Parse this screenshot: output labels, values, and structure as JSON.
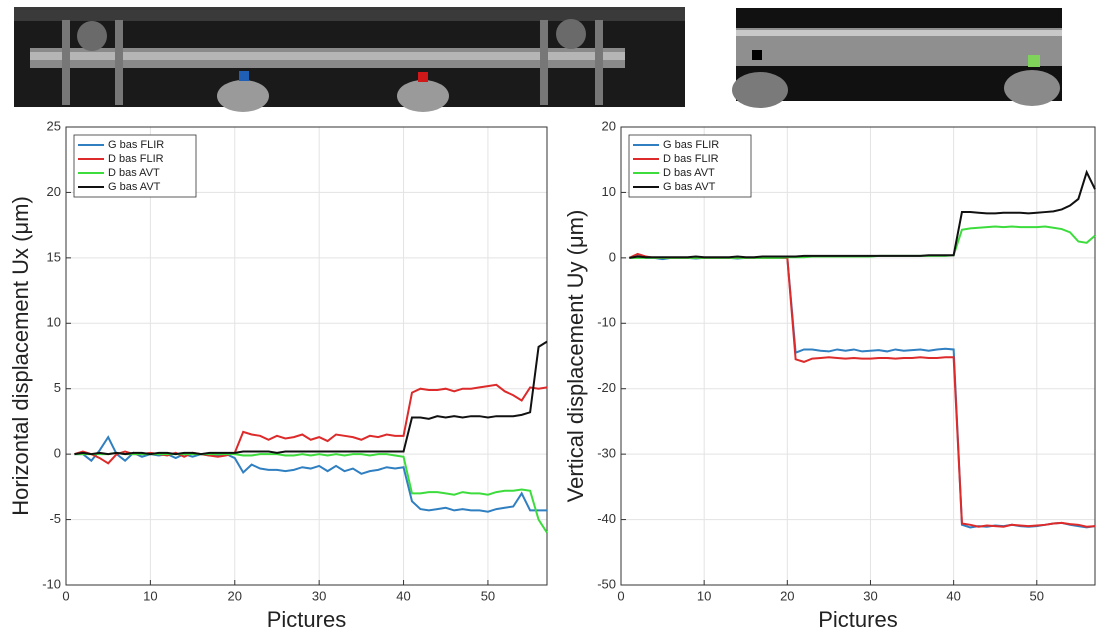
{
  "chart_data": [
    {
      "type": "line",
      "xlabel": "Pictures",
      "ylabel": "Horizontal displacement Ux (μm)",
      "x": [
        1,
        2,
        3,
        4,
        5,
        6,
        7,
        8,
        9,
        10,
        11,
        12,
        13,
        14,
        15,
        16,
        17,
        18,
        19,
        20,
        21,
        22,
        23,
        24,
        25,
        26,
        27,
        28,
        29,
        30,
        31,
        32,
        33,
        34,
        35,
        36,
        37,
        38,
        39,
        40,
        41,
        42,
        43,
        44,
        45,
        46,
        47,
        48,
        49,
        50,
        51,
        52,
        53,
        54,
        55,
        56,
        57
      ],
      "xlim": [
        0,
        57
      ],
      "ylim": [
        -10,
        25
      ],
      "xticks": [
        0,
        10,
        20,
        30,
        40,
        50
      ],
      "yticks": [
        -10,
        -5,
        0,
        5,
        10,
        15,
        20,
        25
      ],
      "grid": true,
      "legend": "upper left",
      "series": [
        {
          "name": "G bas FLIR",
          "color": "#2f7fc1",
          "values": [
            0,
            0,
            -0.5,
            0.3,
            1.3,
            0,
            -0.5,
            0.1,
            -0.2,
            0,
            -0.1,
            0,
            -0.3,
            0,
            -0.2,
            0,
            -0.1,
            -0.1,
            0,
            -0.3,
            -1.4,
            -0.8,
            -1.1,
            -1.2,
            -1.2,
            -1.3,
            -1.2,
            -1.0,
            -1.1,
            -0.9,
            -1.3,
            -0.9,
            -1.3,
            -1.1,
            -1.5,
            -1.3,
            -1.2,
            -1.0,
            -1.1,
            -1.0,
            -3.6,
            -4.2,
            -4.3,
            -4.2,
            -4.1,
            -4.3,
            -4.2,
            -4.3,
            -4.3,
            -4.4,
            -4.2,
            -4.1,
            -4.0,
            -3.0,
            -4.3,
            -4.3,
            -4.3
          ]
        },
        {
          "name": "D bas FLIR",
          "color": "#dd2a2a",
          "values": [
            0,
            0.2,
            0,
            -0.3,
            -0.7,
            0,
            0.2,
            0,
            0,
            0.1,
            0,
            -0.1,
            0.1,
            -0.2,
            0.1,
            0,
            -0.1,
            -0.2,
            -0.1,
            0.1,
            1.7,
            1.5,
            1.4,
            1.1,
            1.4,
            1.2,
            1.3,
            1.5,
            1.1,
            1.3,
            1.0,
            1.5,
            1.4,
            1.3,
            1.1,
            1.4,
            1.3,
            1.5,
            1.4,
            1.4,
            4.7,
            5.0,
            4.9,
            4.9,
            5.0,
            4.8,
            5.0,
            5.0,
            5.1,
            5.2,
            5.3,
            4.8,
            4.5,
            4.1,
            5.1,
            5.0,
            5.1
          ]
        },
        {
          "name": "D bas AVT",
          "color": "#3ddc3d",
          "values": [
            0,
            0,
            0,
            0,
            0,
            0.1,
            0,
            0,
            0,
            0,
            0,
            0,
            0,
            0,
            0,
            0,
            0,
            0,
            0,
            0,
            -0.1,
            -0.1,
            0,
            0,
            0,
            -0.1,
            -0.1,
            0,
            -0.1,
            0,
            -0.1,
            0,
            -0.1,
            0,
            0,
            -0.1,
            0,
            0,
            -0.1,
            -0.2,
            -3.0,
            -3.0,
            -2.9,
            -2.9,
            -3.0,
            -3.1,
            -2.9,
            -3.0,
            -3.0,
            -3.1,
            -2.9,
            -2.8,
            -2.8,
            -2.7,
            -2.8,
            -5.0,
            -6.0
          ]
        },
        {
          "name": "G bas AVT",
          "color": "#111111",
          "values": [
            0,
            0.1,
            0,
            0.1,
            0,
            0.1,
            0,
            0.1,
            0.1,
            0,
            0.1,
            0.1,
            0,
            0.1,
            0.1,
            0,
            0.1,
            0.1,
            0.1,
            0.1,
            0.2,
            0.2,
            0.2,
            0.2,
            0.1,
            0.2,
            0.2,
            0.2,
            0.2,
            0.2,
            0.2,
            0.2,
            0.2,
            0.2,
            0.2,
            0.2,
            0.2,
            0.2,
            0.2,
            0.2,
            2.8,
            2.8,
            2.7,
            2.9,
            2.8,
            2.9,
            2.8,
            2.9,
            2.9,
            2.8,
            2.9,
            2.9,
            2.9,
            3.0,
            3.2,
            8.2,
            8.6
          ]
        }
      ]
    },
    {
      "type": "line",
      "xlabel": "Pictures",
      "ylabel": "Vertical displacement Uy (μm)",
      "x": [
        1,
        2,
        3,
        4,
        5,
        6,
        7,
        8,
        9,
        10,
        11,
        12,
        13,
        14,
        15,
        16,
        17,
        18,
        19,
        20,
        21,
        22,
        23,
        24,
        25,
        26,
        27,
        28,
        29,
        30,
        31,
        32,
        33,
        34,
        35,
        36,
        37,
        38,
        39,
        40,
        41,
        42,
        43,
        44,
        45,
        46,
        47,
        48,
        49,
        50,
        51,
        52,
        53,
        54,
        55,
        56,
        57
      ],
      "xlim": [
        0,
        57
      ],
      "ylim": [
        -50,
        20
      ],
      "xticks": [
        0,
        10,
        20,
        30,
        40,
        50
      ],
      "yticks": [
        -50,
        -40,
        -30,
        -20,
        -10,
        0,
        10,
        20
      ],
      "grid": true,
      "legend": "upper left",
      "series": [
        {
          "name": "G bas FLIR",
          "color": "#2f7fc1",
          "values": [
            0,
            0.3,
            0,
            0,
            -0.2,
            0,
            0,
            0,
            -0.1,
            0,
            0,
            0,
            0,
            -0.1,
            0,
            0,
            0,
            0,
            0,
            0,
            -14.5,
            -14.0,
            -14.0,
            -14.2,
            -14.3,
            -14.0,
            -14.2,
            -14.0,
            -14.3,
            -14.2,
            -14.1,
            -14.3,
            -14.0,
            -14.2,
            -14.1,
            -14.0,
            -14.2,
            -14.0,
            -13.9,
            -14.0,
            -40.8,
            -41.2,
            -41.0,
            -41.1,
            -40.9,
            -41.0,
            -40.8,
            -41.0,
            -41.1,
            -41.0,
            -40.8,
            -40.6,
            -40.5,
            -40.8,
            -41.0,
            -41.2,
            -41.0
          ]
        },
        {
          "name": "D bas FLIR",
          "color": "#dd2a2a",
          "values": [
            0,
            0.6,
            0.2,
            0,
            0,
            0,
            0,
            0,
            0,
            0,
            0,
            0,
            0,
            0,
            0,
            0,
            0,
            0,
            0,
            0,
            -15.5,
            -15.9,
            -15.4,
            -15.3,
            -15.2,
            -15.3,
            -15.4,
            -15.3,
            -15.4,
            -15.4,
            -15.3,
            -15.3,
            -15.4,
            -15.3,
            -15.3,
            -15.2,
            -15.3,
            -15.3,
            -15.2,
            -15.2,
            -40.6,
            -40.8,
            -41.1,
            -40.9,
            -41.0,
            -41.1,
            -40.8,
            -40.9,
            -41.0,
            -40.9,
            -40.8,
            -40.6,
            -40.5,
            -40.7,
            -40.8,
            -41.1,
            -41.0
          ]
        },
        {
          "name": "D bas AVT",
          "color": "#3ddc3d",
          "values": [
            0,
            0,
            0,
            0,
            0,
            0,
            0,
            0,
            0,
            0,
            0,
            0,
            0,
            0,
            0,
            0,
            0,
            0,
            0,
            0.1,
            0.1,
            0.1,
            0.2,
            0.2,
            0.2,
            0.2,
            0.2,
            0.2,
            0.2,
            0.2,
            0.3,
            0.3,
            0.3,
            0.3,
            0.3,
            0.3,
            0.3,
            0.3,
            0.3,
            0.4,
            4.3,
            4.5,
            4.6,
            4.7,
            4.8,
            4.7,
            4.8,
            4.7,
            4.7,
            4.7,
            4.8,
            4.6,
            4.4,
            3.9,
            2.5,
            2.3,
            3.4
          ]
        },
        {
          "name": "G bas AVT",
          "color": "#111111",
          "values": [
            0,
            0.2,
            0.1,
            0.1,
            0.1,
            0.1,
            0.1,
            0.1,
            0.2,
            0.1,
            0.1,
            0.1,
            0.1,
            0.2,
            0.1,
            0.1,
            0.2,
            0.2,
            0.2,
            0.2,
            0.2,
            0.3,
            0.3,
            0.3,
            0.3,
            0.3,
            0.3,
            0.3,
            0.3,
            0.3,
            0.3,
            0.3,
            0.3,
            0.3,
            0.3,
            0.3,
            0.4,
            0.4,
            0.4,
            0.4,
            7.0,
            7.0,
            6.9,
            6.8,
            6.8,
            6.9,
            6.9,
            6.9,
            6.8,
            6.9,
            7.0,
            7.1,
            7.4,
            8.0,
            9.0,
            13.1,
            10.5
          ]
        }
      ]
    }
  ]
}
